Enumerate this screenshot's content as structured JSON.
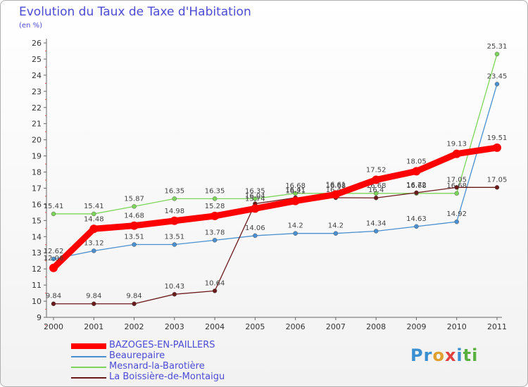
{
  "title": "Evolution du Taux de Taxe d'Habitation",
  "unit_label": "(en %)",
  "logo": {
    "text": "Proxiti",
    "letter_colors": [
      "#3a8fd0",
      "#3a8fd0",
      "#e0a030",
      "#e04040",
      "#3a8fd0",
      "#58b040",
      "#58b040"
    ]
  },
  "chart_data": {
    "type": "line",
    "x": [
      "2000",
      "2001",
      "2002",
      "2003",
      "2004",
      "2005",
      "2006",
      "2007",
      "2008",
      "2009",
      "2010",
      "2011"
    ],
    "ylim": [
      9,
      26
    ],
    "y_ticks": [
      "9",
      "10",
      "11",
      "12",
      "13",
      "14",
      "15",
      "16",
      "17",
      "18",
      "19",
      "20",
      "21",
      "22",
      "23",
      "24",
      "25",
      "26"
    ],
    "grid": false,
    "series": [
      {
        "name": "Mesnard-la-Barotière",
        "color": "#7dd65a",
        "values": [
          15.41,
          15.41,
          15.87,
          16.35,
          16.35,
          16.35,
          16.68,
          16.68,
          16.68,
          16.68,
          16.68,
          25.31
        ],
        "labels": [
          "15.41",
          "15.41",
          "15.87",
          "16.35",
          "16.35",
          "16.35",
          "16.68",
          "16.68",
          "16.68",
          "16.68",
          "16.68",
          "25.31"
        ]
      },
      {
        "name": "Beaurepaire",
        "color": "#4a90d0",
        "values": [
          12.62,
          13.12,
          13.51,
          13.51,
          13.78,
          14.06,
          14.2,
          14.2,
          14.34,
          14.63,
          14.92,
          23.45
        ],
        "labels": [
          "12.62",
          "13.12",
          "13.51",
          "13.51",
          "13.78",
          "14.06",
          "14.2",
          "14.2",
          "14.34",
          "14.63",
          "14.92",
          "23.45"
        ]
      },
      {
        "name": "La Boissière-de-Montaigu",
        "color": "#6b1a1a",
        "values": [
          9.84,
          9.84,
          9.84,
          10.43,
          10.64,
          16.04,
          16.41,
          16.41,
          16.4,
          16.72,
          17.05,
          17.05
        ],
        "labels": [
          "9.84",
          "9.84",
          "9.84",
          "10.43",
          "10.64",
          "16.04",
          "16.41",
          "16.41",
          "16.4",
          "16.72",
          "17.05",
          "17.05"
        ]
      },
      {
        "name": "BAZOGES-EN-PAILLERS",
        "color": "#ff0000",
        "values": [
          12.06,
          14.48,
          14.68,
          14.98,
          15.28,
          15.74,
          16.21,
          16.61,
          17.52,
          18.05,
          19.13,
          19.51
        ],
        "labels": [
          "12.06",
          "14.48",
          "14.68",
          "14.98",
          "15.28",
          "15.74",
          "16.21",
          "16.61",
          "17.52",
          "18.05",
          "19.13",
          "19.51"
        ]
      }
    ],
    "legend": [
      "BAZOGES-EN-PAILLERS",
      "Beaurepaire",
      "Mesnard-la-Barotière",
      "La Boissière-de-Montaigu"
    ],
    "legend_position": "bottom-left"
  }
}
